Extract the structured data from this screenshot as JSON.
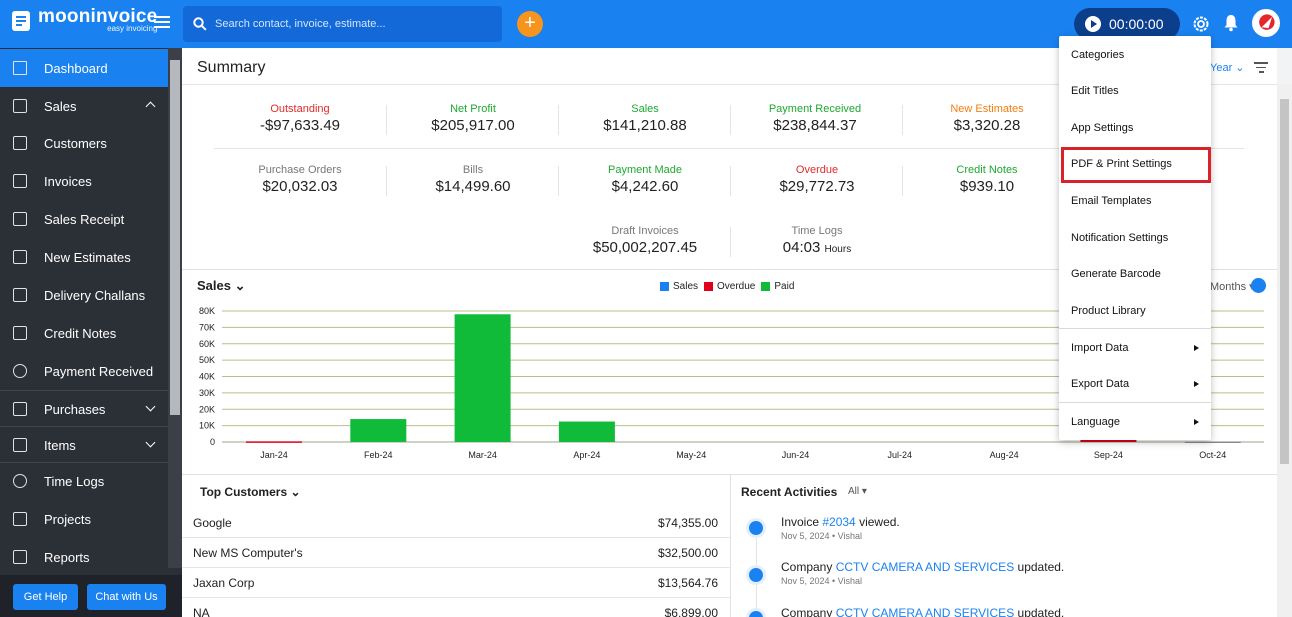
{
  "app": {
    "name": "mooninvoice",
    "tagline": "easy invoicing"
  },
  "search": {
    "placeholder": "Search contact, invoice, estimate..."
  },
  "timer": {
    "value": "00:00:00"
  },
  "sidebar": {
    "items": [
      {
        "label": "Dashboard",
        "icon": "home-icon"
      },
      {
        "label": "Sales",
        "icon": "dollar-icon"
      },
      {
        "label": "Customers",
        "icon": "contact-icon"
      },
      {
        "label": "Invoices",
        "icon": "invoice-icon"
      },
      {
        "label": "Sales Receipt",
        "icon": "receipt-icon"
      },
      {
        "label": "New Estimates",
        "icon": "estimate-icon"
      },
      {
        "label": "Delivery Challans",
        "icon": "challan-icon"
      },
      {
        "label": "Credit Notes",
        "icon": "credit-note-icon"
      },
      {
        "label": "Payment Received",
        "icon": "payment-icon"
      },
      {
        "label": "Purchases",
        "icon": "purchase-icon"
      },
      {
        "label": "Items",
        "icon": "items-icon"
      },
      {
        "label": "Time Logs",
        "icon": "clock-icon"
      },
      {
        "label": "Projects",
        "icon": "folder-icon"
      },
      {
        "label": "Reports",
        "icon": "report-icon"
      }
    ],
    "help_label": "Get Help",
    "chat_label": "Chat with Us"
  },
  "summary": {
    "title": "Summary",
    "year_filter": "Year",
    "metrics": [
      {
        "label": "Outstanding",
        "value": "-$97,633.49",
        "color": "#e02b2b"
      },
      {
        "label": "Net Profit",
        "value": "$205,917.00",
        "color": "#1ea831"
      },
      {
        "label": "Sales",
        "value": "$141,210.88",
        "color": "#1ea831"
      },
      {
        "label": "Payment Received",
        "value": "$238,844.37",
        "color": "#1ea831"
      },
      {
        "label": "New Estimates",
        "value": "$3,320.28",
        "color": "#f07f12"
      },
      {
        "label": "Purchase Orders",
        "value": "$20,032.03",
        "color": "#777777"
      },
      {
        "label": "Bills",
        "value": "$14,499.60",
        "color": "#777777"
      },
      {
        "label": "Payment Made",
        "value": "$4,242.60",
        "color": "#1ea831"
      },
      {
        "label": "Overdue",
        "value": "$29,772.73",
        "color": "#e02b2b"
      },
      {
        "label": "Credit Notes",
        "value": "$939.10",
        "color": "#1ea831"
      },
      {
        "label": "Draft Invoices",
        "value": "$50,002,207.45",
        "color": "#777777"
      },
      {
        "label": "Time Logs",
        "value": "04:03",
        "unit": "Hours",
        "color": "#777777"
      }
    ]
  },
  "sales_chart": {
    "title": "Sales",
    "period_label": "Months",
    "legend": [
      {
        "name": "Sales",
        "color": "#1a82f0"
      },
      {
        "name": "Overdue",
        "color": "#e0001b"
      },
      {
        "name": "Paid",
        "color": "#11bb3a"
      }
    ]
  },
  "chart_data": {
    "type": "bar",
    "categories": [
      "Jan-24",
      "Feb-24",
      "Mar-24",
      "Apr-24",
      "May-24",
      "Jun-24",
      "Jul-24",
      "Aug-24",
      "Sep-24",
      "Oct-24"
    ],
    "series": [
      {
        "name": "Paid",
        "values": [
          0,
          14000,
          78000,
          12500,
          0,
          0,
          0,
          0,
          0,
          0
        ]
      },
      {
        "name": "Overdue",
        "values": [
          400,
          0,
          0,
          0,
          0,
          0,
          0,
          0,
          1500,
          0
        ]
      },
      {
        "name": "Sales",
        "values": [
          0,
          0,
          0,
          0,
          0,
          0,
          0,
          0,
          0,
          300
        ]
      }
    ],
    "yticks": [
      "0",
      "10K",
      "20K",
      "30K",
      "40K",
      "50K",
      "60K",
      "70K",
      "80K"
    ],
    "ylim": [
      0,
      80000
    ],
    "grid": true,
    "legend_position": "top"
  },
  "top_customers": {
    "title": "Top Customers",
    "rows": [
      {
        "name": "Google",
        "amount": "$74,355.00"
      },
      {
        "name": "New MS Computer's",
        "amount": "$32,500.00"
      },
      {
        "name": "Jaxan Corp",
        "amount": "$13,564.76"
      },
      {
        "name": "NA",
        "amount": "$6,899.00"
      }
    ]
  },
  "recent_activities": {
    "title": "Recent Activities",
    "filter": "All",
    "items": [
      {
        "prefix": "Invoice ",
        "link": "#2034",
        "suffix": " viewed.",
        "meta": "Nov 5, 2024 • Vishal"
      },
      {
        "prefix": "Company ",
        "link": "CCTV CAMERA AND SERVICES",
        "suffix": " updated.",
        "meta": "Nov 5, 2024 • Vishal"
      },
      {
        "prefix": "Company ",
        "link": "CCTV CAMERA AND SERVICES",
        "suffix": " updated.",
        "meta": ""
      }
    ]
  },
  "settings_menu": {
    "items": [
      {
        "label": "Categories"
      },
      {
        "label": "Edit Titles"
      },
      {
        "label": "App Settings"
      },
      {
        "label": "PDF & Print Settings"
      },
      {
        "label": "Email Templates"
      },
      {
        "label": "Notification Settings"
      },
      {
        "label": "Generate Barcode"
      },
      {
        "label": "Product Library"
      },
      {
        "label": "Import Data"
      },
      {
        "label": "Export Data"
      },
      {
        "label": "Language"
      }
    ]
  }
}
